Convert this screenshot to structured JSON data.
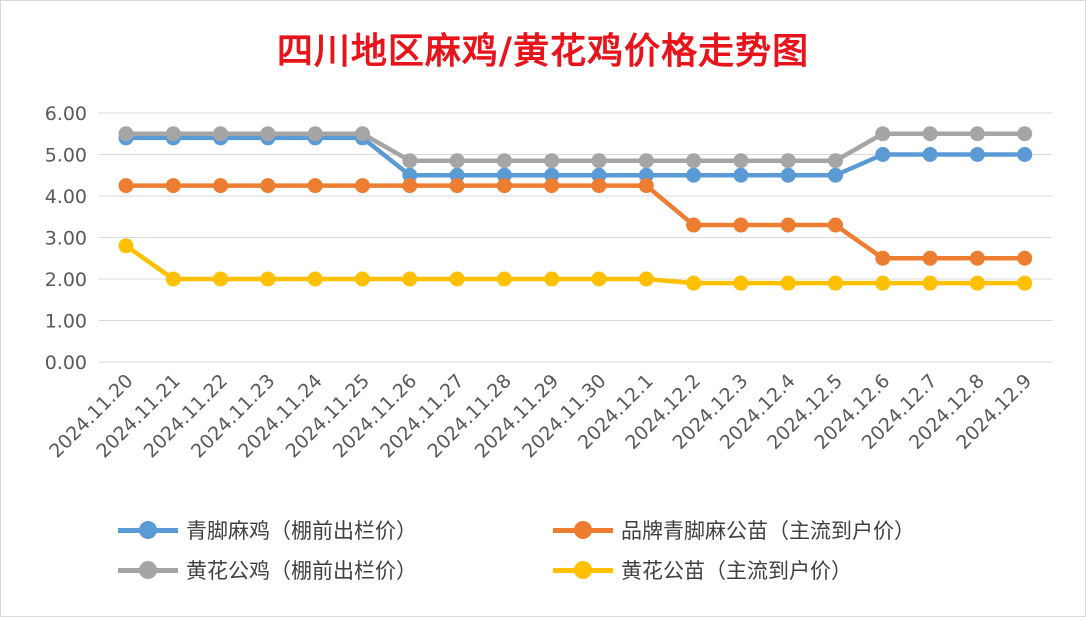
{
  "chart_data": {
    "type": "line",
    "title": "四川地区麻鸡/黄花鸡价格走势图",
    "categories": [
      "2024.11.20",
      "2024.11.21",
      "2024.11.22",
      "2024.11.23",
      "2024.11.24",
      "2024.11.25",
      "2024.11.26",
      "2024.11.27",
      "2024.11.28",
      "2024.11.29",
      "2024.11.30",
      "2024.12.1",
      "2024.12.2",
      "2024.12.3",
      "2024.12.4",
      "2024.12.5",
      "2024.12.6",
      "2024.12.7",
      "2024.12.8",
      "2024.12.9"
    ],
    "ylim": [
      0,
      6
    ],
    "yticks": [
      "0.00",
      "1.00",
      "2.00",
      "3.00",
      "4.00",
      "5.00",
      "6.00"
    ],
    "grid": true,
    "legend_position": "bottom",
    "series": [
      {
        "name": "青脚麻鸡（棚前出栏价）",
        "color": "#5b9bd5",
        "values": [
          5.4,
          5.4,
          5.4,
          5.4,
          5.4,
          5.4,
          4.5,
          4.5,
          4.5,
          4.5,
          4.5,
          4.5,
          4.5,
          4.5,
          4.5,
          4.5,
          5.0,
          5.0,
          5.0,
          5.0
        ]
      },
      {
        "name": "品牌青脚麻公苗（主流到户价）",
        "color": "#ed7d31",
        "values": [
          4.25,
          4.25,
          4.25,
          4.25,
          4.25,
          4.25,
          4.25,
          4.25,
          4.25,
          4.25,
          4.25,
          4.25,
          3.3,
          3.3,
          3.3,
          3.3,
          2.5,
          2.5,
          2.5,
          2.5
        ]
      },
      {
        "name": "黄花公鸡（棚前出栏价）",
        "color": "#a5a5a5",
        "values": [
          5.5,
          5.5,
          5.5,
          5.5,
          5.5,
          5.5,
          4.85,
          4.85,
          4.85,
          4.85,
          4.85,
          4.85,
          4.85,
          4.85,
          4.85,
          4.85,
          5.5,
          5.5,
          5.5,
          5.5
        ]
      },
      {
        "name": "黄花公苗（主流到户价）",
        "color": "#ffc000",
        "values": [
          2.8,
          2.0,
          2.0,
          2.0,
          2.0,
          2.0,
          2.0,
          2.0,
          2.0,
          2.0,
          2.0,
          2.0,
          1.9,
          1.9,
          1.9,
          1.9,
          1.9,
          1.9,
          1.9,
          1.9
        ]
      }
    ]
  }
}
